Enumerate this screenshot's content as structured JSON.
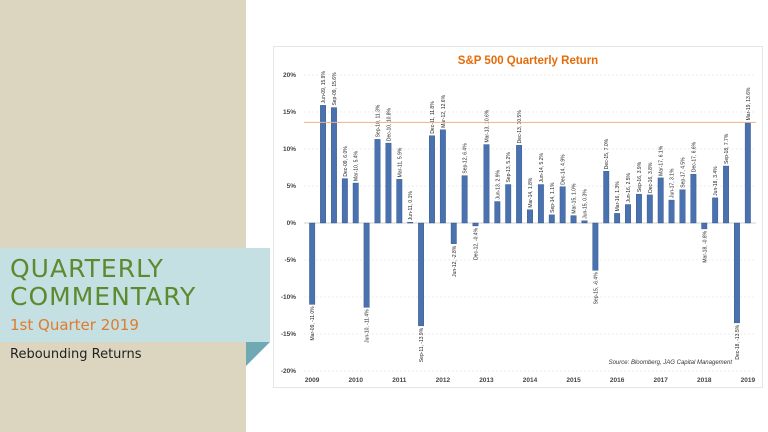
{
  "slide": {
    "title_line1": "QUARTERLY",
    "title_line2": "COMMENTARY",
    "subtitle": "1st Quarter 2019",
    "tagline": "Rebounding Returns"
  },
  "colors": {
    "bar": "#4a72b0",
    "title": "#e46c0a",
    "reference_line": "#f4b183",
    "heading_green": "#5c8a2e",
    "subtitle_orange": "#e07a2d"
  },
  "chart_data": {
    "type": "bar",
    "title": "S&P 500 Quarterly Return",
    "source": "Source: Bloomberg, JAG Capital Management",
    "xlabel": "",
    "ylabel": "",
    "ylim": [
      -20,
      20
    ],
    "yticks": [
      20,
      15,
      10,
      5,
      0,
      -5,
      -10,
      -15,
      -20
    ],
    "ytick_labels": [
      "20%",
      "15%",
      "10%",
      "5%",
      "0%",
      "-5%",
      "-10%",
      "-15%",
      "-20%"
    ],
    "xtick_labels": [
      "2009",
      "2010",
      "2011",
      "2012",
      "2013",
      "2014",
      "2015",
      "2016",
      "2017",
      "2018",
      "2019"
    ],
    "grid": true,
    "reference_line": 13.6,
    "categories": [
      "Mar-09",
      "Jun-09",
      "Sep-09",
      "Dec-09",
      "Mar-10",
      "Jun-10",
      "Sep-10",
      "Dec-10",
      "Mar-11",
      "Jun-11",
      "Sep-11",
      "Dec-11",
      "Mar-12",
      "Jun-12",
      "Sep-12",
      "Dec-12",
      "Mar-13",
      "Jun-13",
      "Sep-13",
      "Dec-13",
      "Mar-14",
      "Jun-14",
      "Sep-14",
      "Dec-14",
      "Mar-15",
      "Jun-15",
      "Sep-15",
      "Dec-15",
      "Mar-16",
      "Jun-16",
      "Sep-16",
      "Dec-16",
      "Mar-17",
      "Jun-17",
      "Sep-17",
      "Dec-17",
      "Mar-18",
      "Jun-18",
      "Sep-18",
      "Dec-18",
      "Mar-19"
    ],
    "values": [
      -11.0,
      15.9,
      15.6,
      6.0,
      5.4,
      -11.4,
      11.3,
      10.8,
      5.9,
      0.1,
      -13.9,
      11.8,
      12.6,
      -2.8,
      6.4,
      -0.4,
      10.6,
      2.9,
      5.2,
      10.5,
      1.8,
      5.2,
      1.1,
      4.9,
      1.0,
      0.3,
      -6.4,
      7.0,
      1.3,
      2.5,
      3.9,
      3.8,
      6.1,
      3.1,
      4.5,
      6.6,
      -0.8,
      3.4,
      7.7,
      -13.5,
      13.6
    ],
    "data_labels": [
      "Mar-09, -11.0%",
      "Jun-09, 15.9%",
      "Sep-09, 15.6%",
      "Dec-09, 6.0%",
      "Mar-10, 5.4%",
      "Jun-10, -11.4%",
      "Sep-10, 11.3%",
      "Dec-10, 10.8%",
      "Mar-11, 5.9%",
      "Jun-11, 0.1%",
      "Sep-11, -13.9%",
      "Dec-11, 11.8%",
      "Mar-12, 12.6%",
      "Jun-12, -2.8%",
      "Sep-12, 6.4%",
      "Dec-12, -0.4%",
      "Mar-13, 10.6%",
      "Jun-13, 2.9%",
      "Sep-13, 5.2%",
      "Dec-13, 10.5%",
      "Mar-14, 1.8%",
      "Jun-14, 5.2%",
      "Sep-14, 1.1%",
      "Dec-14, 4.9%",
      "Mar-15, 1.0%",
      "Jun-15, 0.3%",
      "Sep-15, -6.4%",
      "Dec-15, 7.0%",
      "Mar-16, 1.3%",
      "Jun-16, 2.5%",
      "Sep-16, 3.9%",
      "Dec-16, 3.8%",
      "Mar-17, 6.1%",
      "Jun-17, 3.1%",
      "Sep-17, 4.5%",
      "Dec-17, 6.6%",
      "Mar-18, -0.8%",
      "Jun-18, 3.4%",
      "Sep-18, 7.7%",
      "Dec-18, -13.5%",
      "Mar-19, 13.6%"
    ]
  }
}
